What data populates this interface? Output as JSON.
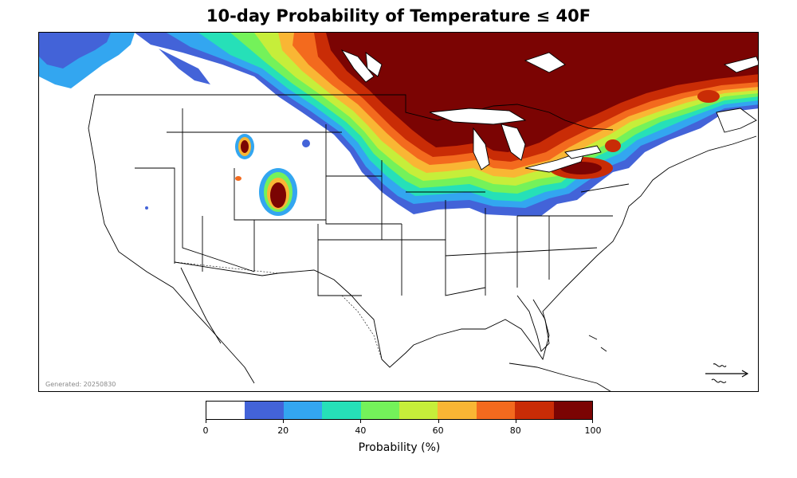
{
  "title": "10-day Probability of Temperature ≤ 40F",
  "generated_label": "Generated: 20250830",
  "colorbar": {
    "label": "Probability (%)",
    "ticks": [
      "0",
      "20",
      "40",
      "60",
      "80",
      "100"
    ],
    "tick_values": [
      0,
      20,
      40,
      60,
      80,
      100
    ],
    "range": [
      0,
      100
    ],
    "bins": [
      {
        "from": 0,
        "to": 10,
        "color": "#ffffff"
      },
      {
        "from": 10,
        "to": 20,
        "color": "#4363d8"
      },
      {
        "from": 20,
        "to": 30,
        "color": "#33a6f0"
      },
      {
        "from": 30,
        "to": 40,
        "color": "#26e0b8"
      },
      {
        "from": 40,
        "to": 50,
        "color": "#74f25a"
      },
      {
        "from": 50,
        "to": 60,
        "color": "#c6ee3a"
      },
      {
        "from": 60,
        "to": 70,
        "color": "#f9b634"
      },
      {
        "from": 70,
        "to": 80,
        "color": "#f36a1e"
      },
      {
        "from": 80,
        "to": 90,
        "color": "#c92c06"
      },
      {
        "from": 90,
        "to": 100,
        "color": "#7b0403"
      }
    ]
  },
  "logo": {
    "name": "logo-mark"
  }
}
